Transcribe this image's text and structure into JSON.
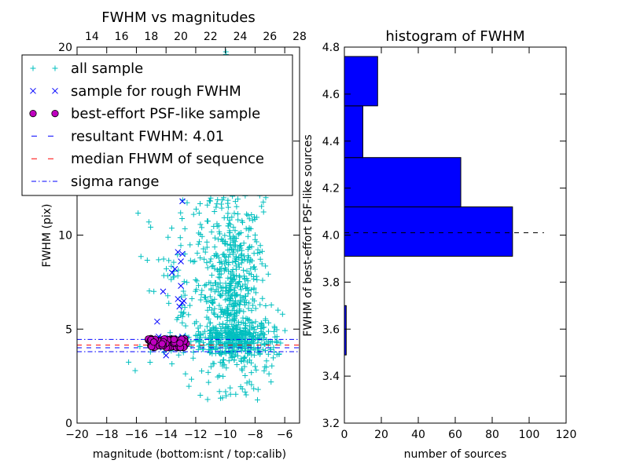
{
  "chart_data": [
    {
      "type": "scatter",
      "title": "FWHM vs magnitudes",
      "xlabel": "magnitude (bottom:isnt / top:calib)",
      "ylabel": "FWHM (pix)",
      "xlim": [
        -20,
        -5
      ],
      "ylim": [
        0,
        20
      ],
      "xticks": [
        "−20",
        "−18",
        "−16",
        "−14",
        "−12",
        "−10",
        "−8",
        "−6"
      ],
      "xtick_values": [
        -20,
        -18,
        -16,
        -14,
        -12,
        -10,
        -8,
        -6
      ],
      "yticks": [
        "0",
        "5",
        "10",
        "15",
        "20"
      ],
      "ytick_values": [
        0,
        5,
        10,
        15,
        20
      ],
      "top_xlim": [
        13,
        28
      ],
      "top_xticks": [
        "14",
        "16",
        "18",
        "20",
        "22",
        "24",
        "26",
        "28"
      ],
      "top_xtick_values": [
        14,
        16,
        18,
        20,
        22,
        24,
        26,
        28
      ],
      "legend_position": "upper-left",
      "series": [
        {
          "name": "all sample",
          "marker": "plus",
          "color": "#00bfbf",
          "clusters": [
            {
              "cx": -9.4,
              "cy": 7.0,
              "sx": 0.9,
              "sy": 2.6,
              "n": 420
            },
            {
              "cx": -9.6,
              "cy": 4.4,
              "sx": 1.2,
              "sy": 0.5,
              "n": 300
            },
            {
              "cx": -10.6,
              "cy": 9.5,
              "sx": 1.6,
              "sy": 3.0,
              "n": 150
            },
            {
              "cx": -12.5,
              "cy": 6.0,
              "sx": 1.6,
              "sy": 2.5,
              "n": 90
            },
            {
              "cx": -10.0,
              "cy": 16.5,
              "sx": 1.5,
              "sy": 2.3,
              "n": 80
            },
            {
              "cx": -7.5,
              "cy": 4.0,
              "sx": 0.9,
              "sy": 0.9,
              "n": 60
            }
          ]
        },
        {
          "name": "sample for rough FWHM",
          "marker": "x",
          "color": "#0000ff",
          "points": [
            [
              -14.5,
              4.6
            ],
            [
              -13.6,
              4.5
            ],
            [
              -13.2,
              4.4
            ],
            [
              -12.9,
              4.6
            ],
            [
              -14.0,
              4.1
            ],
            [
              -14.8,
              4.4
            ],
            [
              -13.2,
              9.1
            ],
            [
              -12.9,
              9.0
            ],
            [
              -13.0,
              8.6
            ],
            [
              -13.4,
              8.2
            ],
            [
              -13.6,
              8.0
            ],
            [
              -13.0,
              7.3
            ],
            [
              -13.2,
              6.6
            ],
            [
              -12.9,
              6.4
            ],
            [
              -13.1,
              6.2
            ],
            [
              -12.8,
              6.5
            ],
            [
              -14.2,
              7.0
            ],
            [
              -14.6,
              5.4
            ],
            [
              -12.9,
              11.8
            ],
            [
              -13.3,
              12.3
            ],
            [
              -14.0,
              3.6
            ]
          ]
        },
        {
          "name": "best-effort PSF-like sample",
          "marker": "circle",
          "color": "#bf00bf",
          "xrange": [
            -15.2,
            -12.6
          ],
          "yrange": [
            4.0,
            4.5
          ],
          "n": 90
        }
      ],
      "hlines": [
        {
          "name": "resultant FWHM: 4.01",
          "y": 4.01,
          "color": "#0000ff",
          "style": "dashed"
        },
        {
          "name": "median FHWM of sequence",
          "y": 4.15,
          "color": "#ff0000",
          "style": "dashed"
        },
        {
          "name": "sigma range",
          "y": 4.45,
          "color": "#0000ff",
          "style": "dashdot"
        },
        {
          "y": 3.8,
          "color": "#0000ff",
          "style": "dashdot"
        }
      ],
      "legend": [
        {
          "label": "all sample",
          "marker": "plus",
          "color": "#00bfbf"
        },
        {
          "label": "sample for rough FWHM",
          "marker": "x",
          "color": "#0000ff"
        },
        {
          "label": "best-effort PSF-like sample",
          "marker": "circle",
          "color": "#bf00bf"
        },
        {
          "label": "resultant FWHM: 4.01",
          "marker": "dashed",
          "color": "#0000ff"
        },
        {
          "label": "median FHWM of sequence",
          "marker": "dashed",
          "color": "#ff0000"
        },
        {
          "label": "sigma range",
          "marker": "dashdot",
          "color": "#0000ff"
        }
      ]
    },
    {
      "type": "bar",
      "orientation": "horizontal",
      "title": "histogram of FWHM",
      "xlabel": "number of sources",
      "ylabel": "FWHM of best-effort PSF-like sources",
      "xlim": [
        0,
        120
      ],
      "ylim": [
        3.2,
        4.8
      ],
      "xticks": [
        "0",
        "20",
        "40",
        "60",
        "80",
        "100",
        "120"
      ],
      "xtick_values": [
        0,
        20,
        40,
        60,
        80,
        100,
        120
      ],
      "yticks": [
        "3.2",
        "3.4",
        "3.6",
        "3.8",
        "4.0",
        "4.2",
        "4.4",
        "4.6",
        "4.8"
      ],
      "ytick_values": [
        3.2,
        3.4,
        3.6,
        3.8,
        4.0,
        4.2,
        4.4,
        4.6,
        4.8
      ],
      "color": "#0000ff",
      "bins": [
        {
          "low": 3.49,
          "high": 3.7,
          "count": 1
        },
        {
          "low": 3.91,
          "high": 4.12,
          "count": 91
        },
        {
          "low": 4.12,
          "high": 4.33,
          "count": 63
        },
        {
          "low": 4.33,
          "high": 4.55,
          "count": 10
        },
        {
          "low": 4.55,
          "high": 4.76,
          "count": 18
        }
      ],
      "hline": {
        "y": 4.01,
        "color": "#000000",
        "style": "dashed",
        "xrange": [
          0,
          108
        ]
      }
    }
  ]
}
